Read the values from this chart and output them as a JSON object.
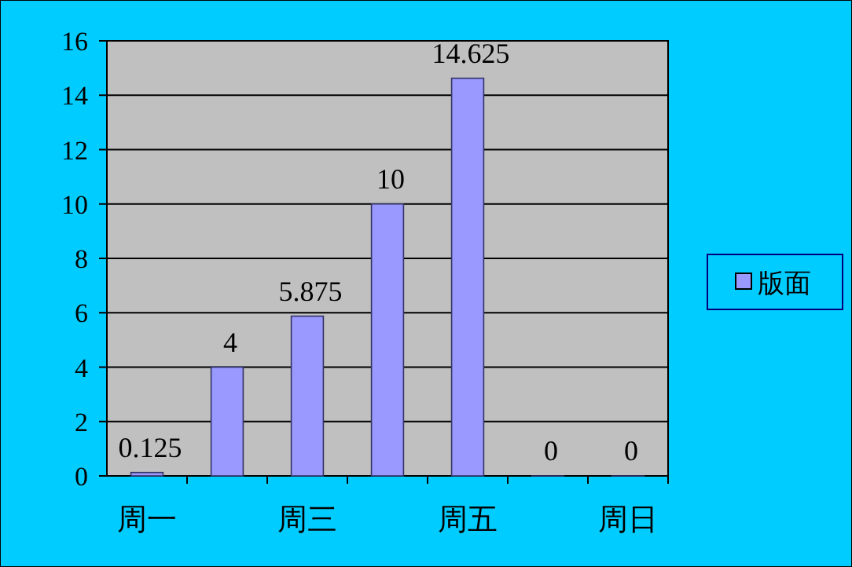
{
  "chart_data": {
    "type": "bar",
    "categories": [
      "周一",
      null,
      "周三",
      null,
      "周五",
      null,
      "周日"
    ],
    "series": [
      {
        "name": "版面",
        "color": "#9999ff",
        "values": [
          0.125,
          4,
          5.875,
          10,
          14.625,
          0,
          0
        ]
      }
    ],
    "ylim": [
      0,
      16
    ],
    "yticks": [
      0,
      2,
      4,
      6,
      8,
      10,
      12,
      14,
      16
    ],
    "grid": "y",
    "legend": "right",
    "data_labels": true
  }
}
